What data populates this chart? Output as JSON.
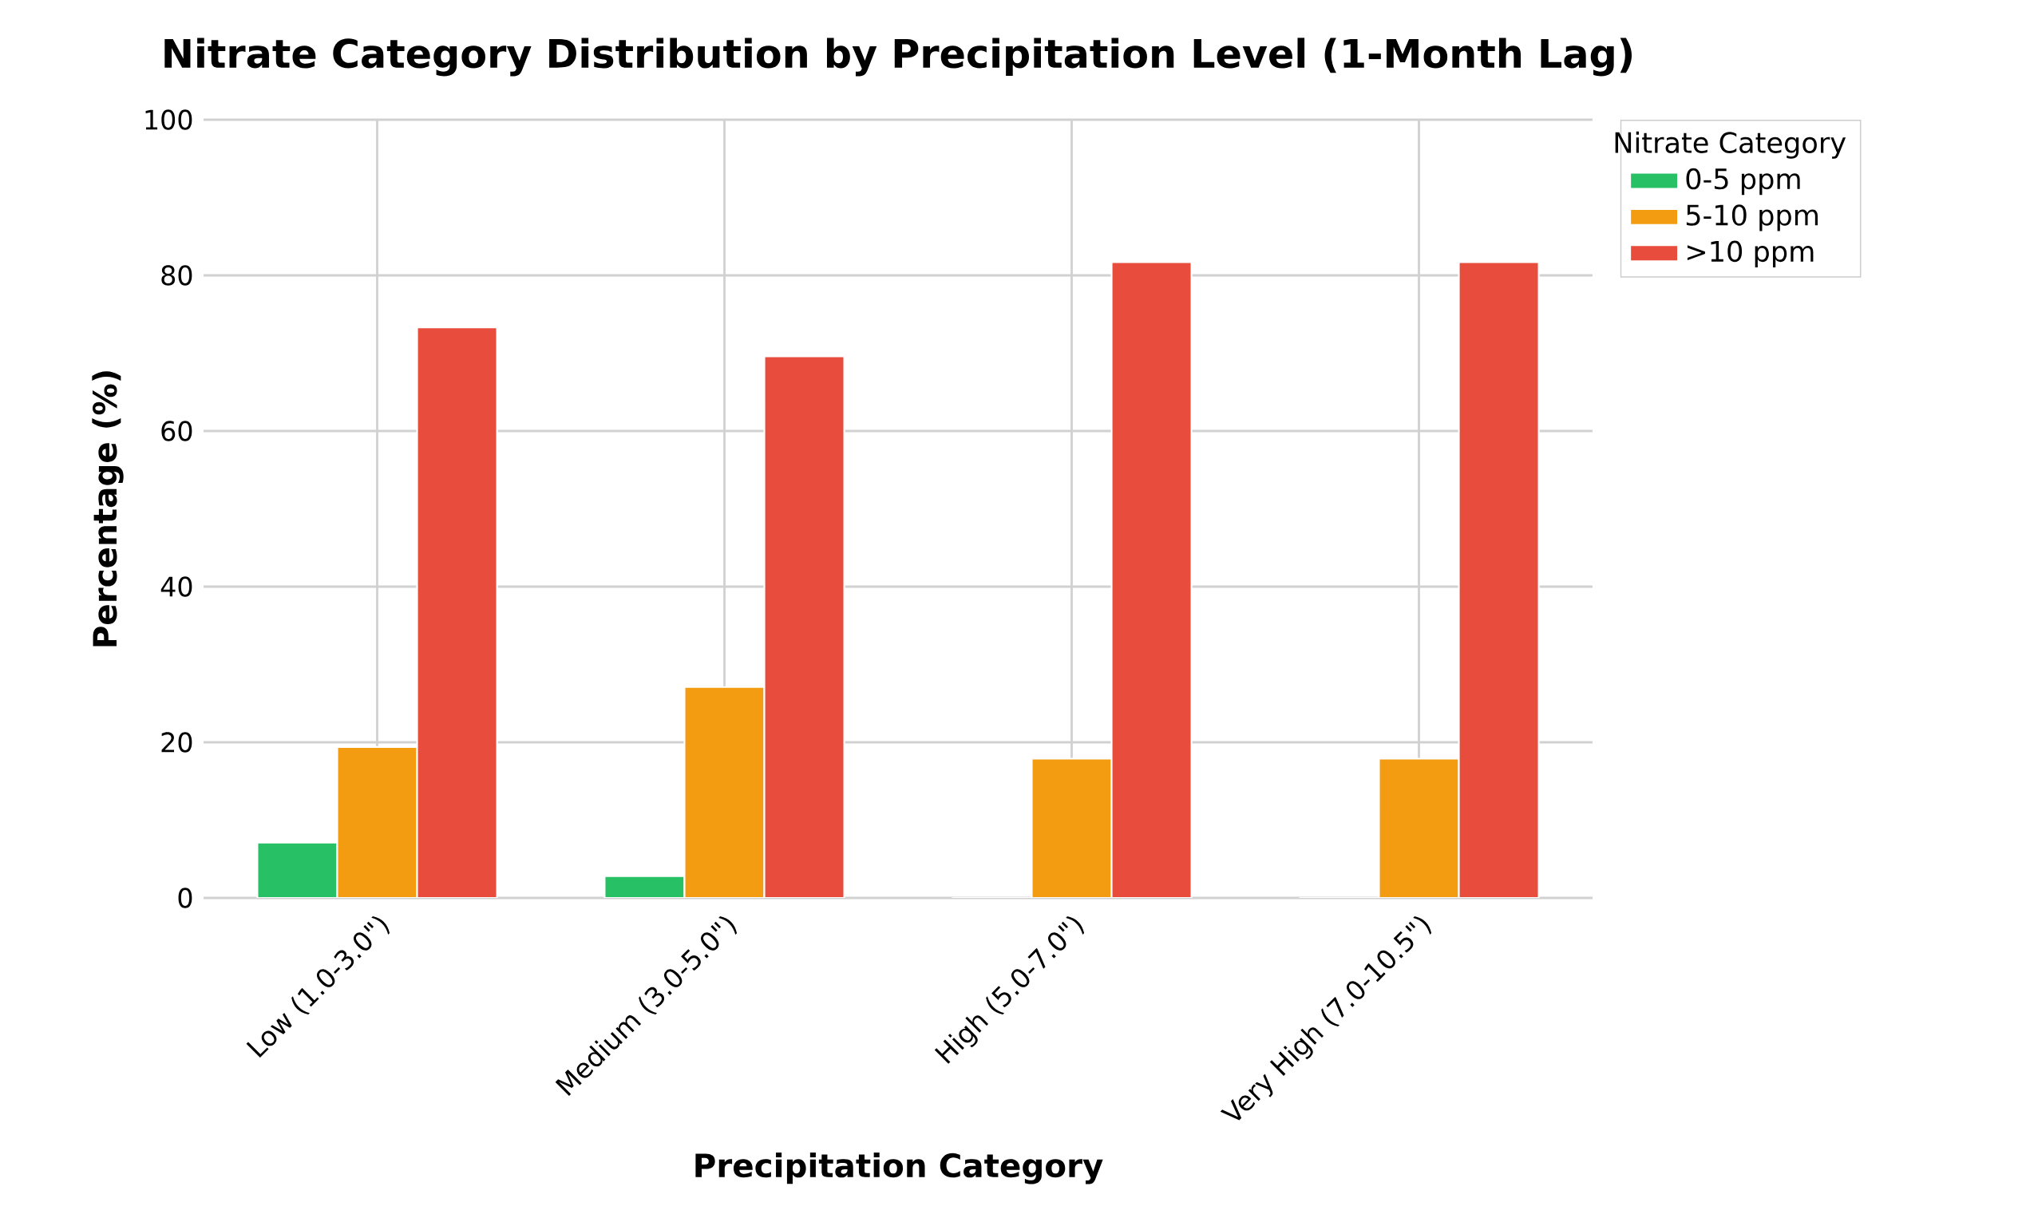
{
  "chart_data": {
    "type": "bar",
    "title": "Nitrate Category Distribution by Precipitation Level (1-Month Lag)",
    "xlabel": "Precipitation Category",
    "ylabel": "Percentage (%)",
    "legend_title": "Nitrate Category",
    "categories": [
      "Low (1.0-3.0\")",
      "Medium (3.0-5.0\")",
      "High (5.0-7.0\")",
      "Very High (7.0-10.5\")"
    ],
    "series": [
      {
        "name": "0-5 ppm",
        "color": "#27c065",
        "values": [
          7.1,
          2.8,
          0,
          0
        ]
      },
      {
        "name": "5-10 ppm",
        "color": "#f39c12",
        "values": [
          19.4,
          27.1,
          17.9,
          17.9
        ]
      },
      {
        "name": ">10 ppm",
        "color": "#e74c3c",
        "values": [
          73.3,
          69.6,
          81.7,
          81.7
        ]
      }
    ],
    "ylim": [
      0,
      100
    ],
    "yticks": [
      0,
      20,
      40,
      60,
      80,
      100
    ],
    "grid": true,
    "legend": "top right"
  }
}
